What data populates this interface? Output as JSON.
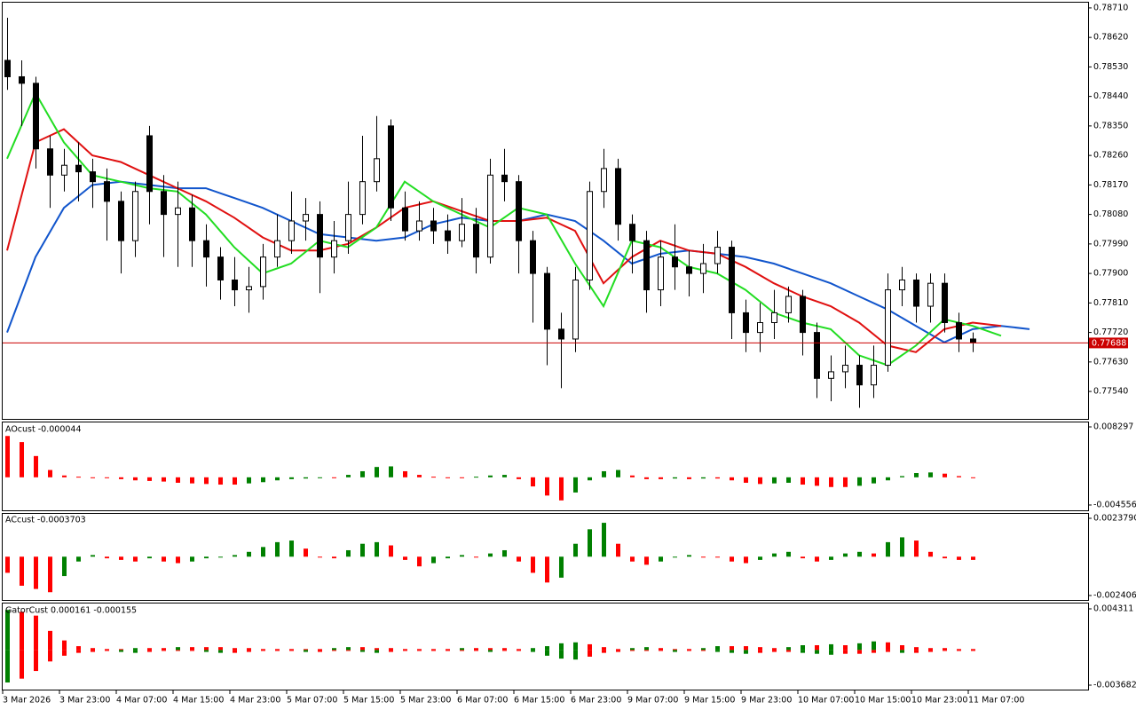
{
  "chart_data": [
    {
      "type": "candlestick",
      "ylim": [
        0.77459,
        0.78726
      ],
      "yticks": [
        {
          "value": 0.7871,
          "label": "0.78710"
        },
        {
          "value": 0.7862,
          "label": "0.78620"
        },
        {
          "value": 0.7853,
          "label": "0.78530"
        },
        {
          "value": 0.7844,
          "label": "0.78440"
        },
        {
          "value": 0.7835,
          "label": "0.78350"
        },
        {
          "value": 0.7826,
          "label": "0.78260"
        },
        {
          "value": 0.7817,
          "label": "0.78170"
        },
        {
          "value": 0.7808,
          "label": "0.78080"
        },
        {
          "value": 0.7799,
          "label": "0.77990"
        },
        {
          "value": 0.779,
          "label": "0.77900"
        },
        {
          "value": 0.7781,
          "label": "0.77810"
        },
        {
          "value": 0.7772,
          "label": "0.77720"
        },
        {
          "value": 0.7763,
          "label": "0.77630"
        },
        {
          "value": 0.7754,
          "label": "0.77540"
        }
      ],
      "xticks": [
        {
          "value": 0,
          "label": "3 Mar 2026"
        },
        {
          "value": 4,
          "label": "3 Mar 23:00"
        },
        {
          "value": 8,
          "label": "4 Mar 07:00"
        },
        {
          "value": 12,
          "label": "4 Mar 15:00"
        },
        {
          "value": 16,
          "label": "4 Mar 23:00"
        },
        {
          "value": 20,
          "label": "5 Mar 07:00"
        },
        {
          "value": 24,
          "label": "5 Mar 15:00"
        },
        {
          "value": 28,
          "label": "5 Mar 23:00"
        },
        {
          "value": 32,
          "label": "6 Mar 07:00"
        },
        {
          "value": 36,
          "label": "6 Mar 15:00"
        },
        {
          "value": 40,
          "label": "6 Mar 23:00"
        },
        {
          "value": 44,
          "label": "9 Mar 07:00"
        },
        {
          "value": 48,
          "label": "9 Mar 15:00"
        },
        {
          "value": 52,
          "label": "9 Mar 23:00"
        },
        {
          "value": 56,
          "label": "10 Mar 07:00"
        },
        {
          "value": 60,
          "label": "10 Mar 15:00"
        },
        {
          "value": 64,
          "label": "10 Mar 23:00"
        },
        {
          "value": 68,
          "label": "11 Mar 07:00"
        }
      ],
      "open": [
        0.7855,
        0.785,
        0.7848,
        0.7828,
        0.782,
        0.7823,
        0.7821,
        0.7818,
        0.7812,
        0.78,
        0.7832,
        0.7815,
        0.7808,
        0.781,
        0.78,
        0.7795,
        0.7788,
        0.7785,
        0.7786,
        0.7795,
        0.78,
        0.7806,
        0.7808,
        0.7795,
        0.78,
        0.7808,
        0.7818,
        0.7835,
        0.781,
        0.7803,
        0.7806,
        0.7803,
        0.78,
        0.7805,
        0.7795,
        0.782,
        0.7818,
        0.78,
        0.779,
        0.7773,
        0.777,
        0.7788,
        0.7815,
        0.7822,
        0.7805,
        0.78,
        0.7785,
        0.7795,
        0.7792,
        0.779,
        0.7793,
        0.7798,
        0.7778,
        0.7772,
        0.7775,
        0.7778,
        0.7783,
        0.7772,
        0.7758,
        0.776,
        0.7762,
        0.7756,
        0.7762,
        0.7785,
        0.7788,
        0.778,
        0.7787,
        0.7775,
        0.777
      ],
      "high": [
        0.7868,
        0.7855,
        0.785,
        0.7832,
        0.7828,
        0.783,
        0.7825,
        0.7822,
        0.7815,
        0.7818,
        0.7835,
        0.782,
        0.7818,
        0.7814,
        0.7805,
        0.7798,
        0.7795,
        0.7792,
        0.7799,
        0.7808,
        0.7815,
        0.7813,
        0.7812,
        0.7806,
        0.7818,
        0.7832,
        0.7838,
        0.7837,
        0.7815,
        0.7812,
        0.781,
        0.7808,
        0.7813,
        0.781,
        0.7825,
        0.7828,
        0.782,
        0.7803,
        0.7792,
        0.7778,
        0.7792,
        0.7818,
        0.7828,
        0.7825,
        0.7808,
        0.7803,
        0.78,
        0.7805,
        0.7797,
        0.7799,
        0.7803,
        0.78,
        0.7782,
        0.7781,
        0.7785,
        0.7786,
        0.7785,
        0.7775,
        0.7765,
        0.7768,
        0.7765,
        0.7768,
        0.779,
        0.7792,
        0.779,
        0.779,
        0.779,
        0.7778,
        0.7772
      ],
      "low": [
        0.7846,
        0.7835,
        0.7822,
        0.781,
        0.7815,
        0.7812,
        0.781,
        0.78,
        0.779,
        0.7795,
        0.7805,
        0.7795,
        0.7792,
        0.7792,
        0.7786,
        0.7782,
        0.778,
        0.7778,
        0.7782,
        0.7792,
        0.7796,
        0.78,
        0.7784,
        0.779,
        0.7796,
        0.7805,
        0.7815,
        0.7806,
        0.78,
        0.78,
        0.7799,
        0.7796,
        0.7798,
        0.779,
        0.7793,
        0.7812,
        0.779,
        0.7775,
        0.7762,
        0.7755,
        0.7766,
        0.7785,
        0.781,
        0.78,
        0.779,
        0.7778,
        0.778,
        0.7785,
        0.7783,
        0.7784,
        0.779,
        0.777,
        0.7766,
        0.7766,
        0.777,
        0.7775,
        0.7765,
        0.7752,
        0.7751,
        0.7755,
        0.7749,
        0.7752,
        0.776,
        0.778,
        0.7775,
        0.7775,
        0.7772,
        0.7766,
        0.7766
      ],
      "close": [
        0.785,
        0.7848,
        0.7828,
        0.782,
        0.7823,
        0.7821,
        0.7818,
        0.7812,
        0.78,
        0.7815,
        0.7815,
        0.7808,
        0.781,
        0.78,
        0.7795,
        0.7788,
        0.7785,
        0.7786,
        0.7795,
        0.78,
        0.7806,
        0.7808,
        0.7795,
        0.78,
        0.7808,
        0.7818,
        0.7825,
        0.781,
        0.7803,
        0.7806,
        0.7803,
        0.78,
        0.7805,
        0.7795,
        0.782,
        0.7818,
        0.78,
        0.779,
        0.7773,
        0.777,
        0.7788,
        0.7815,
        0.7822,
        0.7805,
        0.78,
        0.7785,
        0.7795,
        0.7792,
        0.779,
        0.7793,
        0.7798,
        0.7778,
        0.7772,
        0.7775,
        0.7778,
        0.7783,
        0.7772,
        0.7758,
        0.776,
        0.7762,
        0.7756,
        0.7762,
        0.7785,
        0.7788,
        0.778,
        0.7787,
        0.7775,
        0.777,
        0.7769
      ],
      "up_color": "#ffffff",
      "down_color": "#000000",
      "line_x": [
        0,
        2,
        4,
        6,
        8,
        10,
        12,
        14,
        16,
        18,
        20,
        22,
        24,
        26,
        28,
        30,
        32,
        34,
        36,
        38,
        40,
        42,
        44,
        46,
        48,
        50,
        52,
        54,
        56,
        58,
        60,
        62,
        64,
        66,
        68,
        70,
        72
      ],
      "series": [
        {
          "color": "#1155cc",
          "values": [
            0.7772,
            0.7795,
            0.781,
            0.7817,
            0.7818,
            0.7817,
            0.7816,
            0.7816,
            0.7813,
            0.781,
            0.7806,
            0.7802,
            0.7801,
            0.78,
            0.7801,
            0.7805,
            0.7807,
            0.7806,
            0.7806,
            0.7808,
            0.7806,
            0.78,
            0.7793,
            0.7796,
            0.7797,
            0.7796,
            0.7795,
            0.7793,
            0.779,
            0.7787,
            0.7783,
            0.7779,
            0.7774,
            0.7769,
            0.7773,
            0.7774,
            0.7773
          ]
        },
        {
          "color": "#e01010",
          "values": [
            0.7797,
            0.783,
            0.7834,
            0.7826,
            0.7824,
            0.782,
            0.7816,
            0.7812,
            0.7807,
            0.7801,
            0.7797,
            0.7797,
            0.7799,
            0.7804,
            0.781,
            0.7812,
            0.7809,
            0.7806,
            0.7806,
            0.7807,
            0.7803,
            0.7787,
            0.7795,
            0.78,
            0.7797,
            0.7796,
            0.7792,
            0.7787,
            0.7783,
            0.778,
            0.7775,
            0.7768,
            0.7766,
            0.7773,
            0.7775,
            0.7774,
            null
          ]
        },
        {
          "color": "#22dd22",
          "values": [
            0.7825,
            0.7845,
            0.783,
            0.782,
            0.7818,
            0.7816,
            0.7815,
            0.7808,
            0.7798,
            0.779,
            0.7793,
            0.78,
            0.7798,
            0.7804,
            0.7818,
            0.7812,
            0.7808,
            0.7804,
            0.781,
            0.7808,
            0.7793,
            0.778,
            0.78,
            0.7798,
            0.7792,
            0.779,
            0.7785,
            0.7778,
            0.7775,
            0.7773,
            0.7765,
            0.7762,
            0.7768,
            0.7776,
            0.7774,
            0.7771,
            null
          ]
        }
      ],
      "last_price": 0.77688,
      "last_price_color": "#cc0000"
    },
    {
      "type": "histogram",
      "title": "AOcust -0.000044",
      "ylim": [
        -0.004556,
        0.008297
      ],
      "yticks": [
        0.008297,
        -0.004556
      ],
      "up_color": "#008000",
      "down_color": "#ff0000",
      "values": [
        0.0068,
        0.0058,
        0.0035,
        0.0012,
        0.0003,
        0.0001,
        0,
        -0.0001,
        -0.0003,
        -0.0005,
        -0.0006,
        -0.0007,
        -0.0009,
        -0.001,
        -0.0011,
        -0.0012,
        -0.0012,
        -0.001,
        -0.0008,
        -0.0005,
        -0.0003,
        -0.0002,
        -0.0001,
        -0.0001,
        0.0004,
        0.001,
        0.0017,
        0.0018,
        0.001,
        0.0004,
        0.0001,
        0,
        0,
        0.0001,
        0.0003,
        0.0004,
        -0.0003,
        -0.0015,
        -0.003,
        -0.0038,
        -0.0025,
        -0.0005,
        0.001,
        0.0012,
        0.0003,
        -0.0003,
        -0.0003,
        -0.0002,
        -0.0003,
        -0.0002,
        -0.0002,
        -0.0005,
        -0.0009,
        -0.0011,
        -0.001,
        -0.0009,
        -0.0012,
        -0.0014,
        -0.0016,
        -0.0016,
        -0.0014,
        -0.001,
        -0.0005,
        0.0002,
        0.0007,
        0.0008,
        0.0006,
        0.0002,
        0
      ]
    },
    {
      "type": "histogram",
      "title": "ACcust -0.0003703",
      "ylim": [
        -0.0024065,
        0.002379
      ],
      "yticks": [
        {
          "value": 0.002379,
          "label": "0.0023790"
        },
        -0.0024065
      ],
      "up_color": "#008000",
      "down_color": "#ff0000",
      "values": [
        -0.001,
        -0.0018,
        -0.002,
        -0.0022,
        -0.0012,
        -0.0003,
        0.0001,
        -0.0001,
        -0.0002,
        -0.0003,
        -0.0001,
        -0.0003,
        -0.0004,
        -0.0003,
        -0.0001,
        0,
        0.0001,
        0.0003,
        0.0006,
        0.0009,
        0.001,
        0.0005,
        0,
        -0.0001,
        0.0004,
        0.0008,
        0.0009,
        0.0007,
        -0.0002,
        -0.0006,
        -0.0004,
        -0.0001,
        0.0001,
        0,
        0.0002,
        0.0004,
        -0.0003,
        -0.001,
        -0.0016,
        -0.0013,
        0.0008,
        0.0017,
        0.0021,
        0.0008,
        -0.0003,
        -0.0005,
        -0.0003,
        0,
        0.0001,
        0,
        0,
        -0.0003,
        -0.0004,
        -0.0002,
        0.0002,
        0.0003,
        -0.0001,
        -0.0003,
        -0.0002,
        0.0002,
        0.0003,
        0.0002,
        0.0009,
        0.0012,
        0.001,
        0.0003,
        -0.0001,
        -0.0002,
        -0.0002
      ]
    },
    {
      "type": "gator",
      "title": "GatorCust 0.000161 -0.000155",
      "ylim": [
        -0.003682,
        0.004311
      ],
      "yticks": [
        0.004311,
        -0.003682
      ],
      "up_color": "#008000",
      "down_color": "#ff0000",
      "upper": [
        0.0042,
        0.004,
        0.0036,
        0.002,
        0.001,
        0.0004,
        0.0002,
        0.0001,
        0.0001,
        0.0002,
        0.0002,
        0.0002,
        0.0003,
        0.0003,
        0.0003,
        0.0003,
        0.0002,
        0.0002,
        0.0001,
        0.0001,
        0.0001,
        0.0001,
        0.0001,
        0.0002,
        0.0003,
        0.0003,
        0.0002,
        0.0002,
        0.0001,
        0.0001,
        0.0001,
        0.0001,
        0.0002,
        0.0002,
        0.0002,
        0.0002,
        0.0001,
        0.0002,
        0.0004,
        0.0007,
        0.0008,
        0.0006,
        0.0003,
        0.0001,
        0.0002,
        0.0003,
        0.0002,
        0.0001,
        0.0001,
        0.0002,
        0.0004,
        0.0004,
        0.0004,
        0.0003,
        0.0002,
        0.0003,
        0.0005,
        0.0005,
        0.0006,
        0.0005,
        0.0007,
        0.0009,
        0.0008,
        0.0005,
        0.0003,
        0.0002,
        0.0002,
        0.0001,
        0.0001
      ],
      "lower": [
        -0.0034,
        -0.003,
        -0.0022,
        -0.0012,
        -0.0006,
        -0.0003,
        -0.0002,
        -0.0001,
        -0.0002,
        -0.0003,
        -0.0002,
        -0.0001,
        -0.0001,
        -0.0001,
        -0.0002,
        -0.0003,
        -0.0003,
        -0.0002,
        -0.0001,
        -0.0001,
        -0.0001,
        -0.0002,
        -0.0002,
        -0.0001,
        -0.0001,
        -0.0002,
        -0.0003,
        -0.0002,
        -0.0001,
        -0.0001,
        -0.0001,
        -0.0001,
        -0.0001,
        -0.0001,
        -0.0002,
        -0.0001,
        -0.0001,
        -0.0002,
        -0.0006,
        -0.0009,
        -0.001,
        -0.0007,
        -0.0003,
        -0.0002,
        -0.0001,
        -0.0001,
        -0.0001,
        -0.0002,
        -0.0001,
        -0.0001,
        -0.0002,
        -0.0003,
        -0.0004,
        -0.0003,
        -0.0002,
        -0.0002,
        -0.0003,
        -0.0004,
        -0.0005,
        -0.0004,
        -0.0004,
        -0.0003,
        -0.0002,
        -0.0003,
        -0.0003,
        -0.0002,
        -0.0001,
        -0.0001,
        -0.0001
      ]
    }
  ]
}
